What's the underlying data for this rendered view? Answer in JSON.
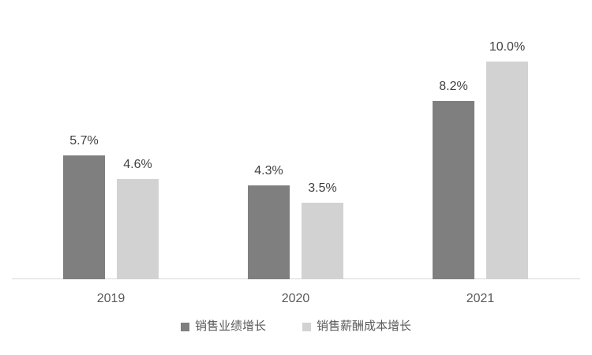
{
  "chart_data": {
    "type": "bar",
    "title": "",
    "xlabel": "",
    "ylabel": "",
    "categories": [
      "2019",
      "2020",
      "2021"
    ],
    "series": [
      {
        "name": "销售业绩增长",
        "color": "#7f7f7f",
        "values": [
          5.7,
          4.3,
          8.2
        ],
        "labels": [
          "5.7%",
          "4.3%",
          "8.2%"
        ]
      },
      {
        "name": "销售薪酬成本增长",
        "color": "#d2d2d2",
        "values": [
          4.6,
          3.5,
          10.0
        ],
        "labels": [
          "4.6%",
          "3.5%",
          "10.0%"
        ]
      }
    ],
    "ylim": [
      0,
      10.8
    ],
    "grid": false,
    "y_axis_visible": false,
    "legend_position": "bottom",
    "colors": {
      "background": "#ffffff",
      "axis_line": "#d9d9d9",
      "data_label": "#404040",
      "tick_label": "#595959",
      "legend_label": "#595959"
    }
  }
}
